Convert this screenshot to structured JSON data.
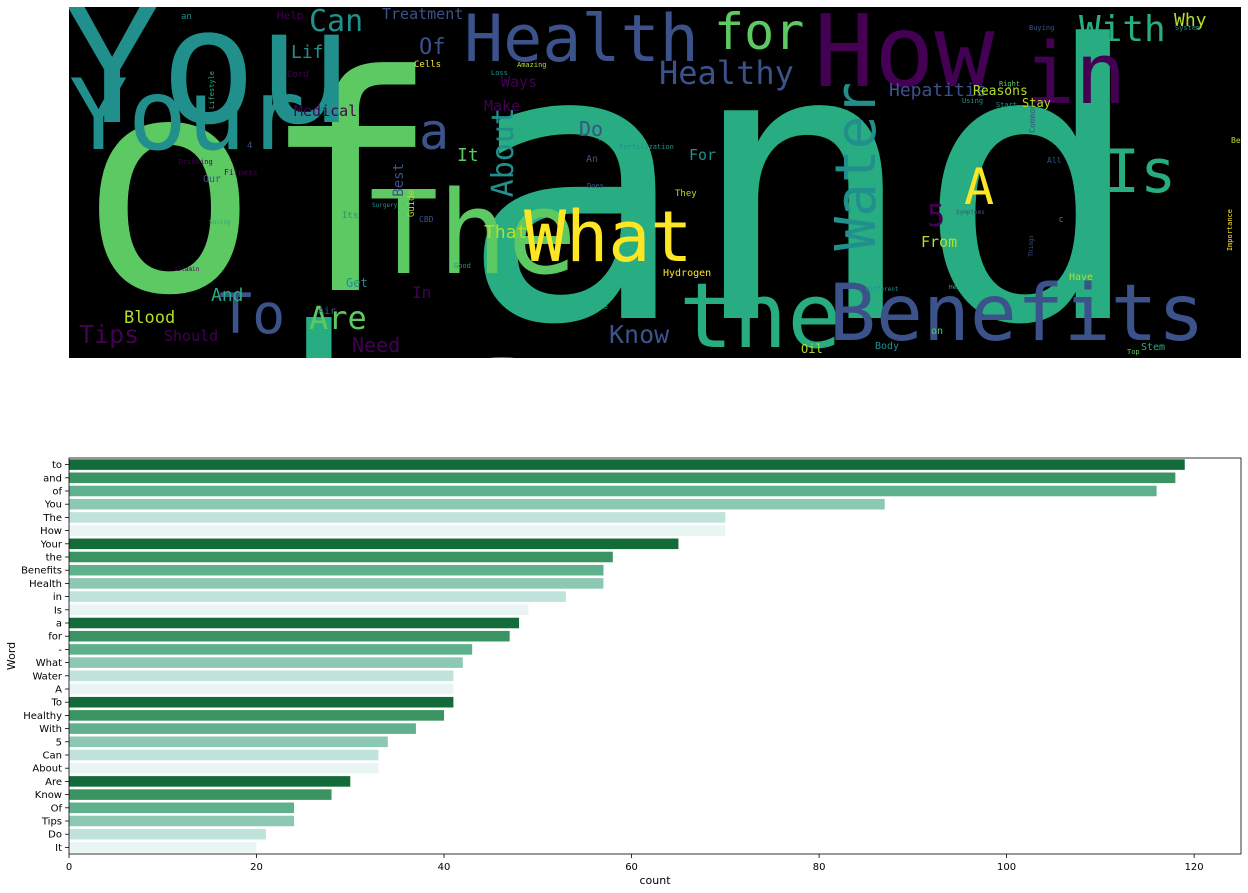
{
  "wordcloud": {
    "background": "#000000",
    "palette": [
      "#440154",
      "#3b528b",
      "#21908d",
      "#27ad81",
      "#5dc963",
      "#b5de2b",
      "#fde725"
    ],
    "words": [
      {
        "t": "to",
        "c": 3
      },
      {
        "t": "and",
        "c": 3
      },
      {
        "t": "of",
        "c": 4
      },
      {
        "t": "You",
        "c": 2
      },
      {
        "t": "The",
        "c": 4
      },
      {
        "t": "How",
        "c": 0
      },
      {
        "t": "Your",
        "c": 2
      },
      {
        "t": "the",
        "c": 3
      },
      {
        "t": "Benefits",
        "c": 1
      },
      {
        "t": "Health",
        "c": 1
      },
      {
        "t": "in",
        "c": 0
      },
      {
        "t": "Is",
        "c": 3
      },
      {
        "t": "a",
        "c": 1
      },
      {
        "t": "for",
        "c": 4
      },
      {
        "t": "What",
        "c": 6
      },
      {
        "t": "Water",
        "c": 2
      },
      {
        "t": "A",
        "c": 6
      },
      {
        "t": "To",
        "c": 1
      },
      {
        "t": "Healthy",
        "c": 1
      },
      {
        "t": "With",
        "c": 3
      },
      {
        "t": "5",
        "c": 0
      },
      {
        "t": "Can",
        "c": 2
      },
      {
        "t": "About",
        "c": 2
      },
      {
        "t": "Are",
        "c": 4
      },
      {
        "t": "Know",
        "c": 1
      },
      {
        "t": "Of",
        "c": 1
      },
      {
        "t": "Tips",
        "c": 0
      },
      {
        "t": "Do",
        "c": 1
      },
      {
        "t": "It",
        "c": 4
      },
      {
        "t": "Why",
        "c": 5
      },
      {
        "t": "Treatment",
        "c": 1
      },
      {
        "t": "Life",
        "c": 2
      },
      {
        "t": "Hepatitis",
        "c": 1
      },
      {
        "t": "That",
        "c": 5
      },
      {
        "t": "Blood",
        "c": 5
      },
      {
        "t": "And",
        "c": 3
      },
      {
        "t": "Need",
        "c": 0
      },
      {
        "t": "Should",
        "c": 0
      },
      {
        "t": "Medical",
        "c": 0
      },
      {
        "t": "For",
        "c": 2
      },
      {
        "t": "Make",
        "c": 0
      },
      {
        "t": "Ways",
        "c": 0
      },
      {
        "t": "From",
        "c": 5
      },
      {
        "t": "Reasons",
        "c": 5
      },
      {
        "t": "Stay",
        "c": 5
      },
      {
        "t": "Best",
        "c": 1
      },
      {
        "t": "Get",
        "c": 2
      },
      {
        "t": "In",
        "c": 0
      },
      {
        "t": "Hydrogen",
        "c": 6
      },
      {
        "t": "Oil",
        "c": 5
      },
      {
        "t": "Have",
        "c": 5
      },
      {
        "t": "Stem",
        "c": 3
      },
      {
        "t": "Help",
        "c": 0
      },
      {
        "t": "Cells",
        "c": 6
      },
      {
        "t": "Guide",
        "c": 5
      },
      {
        "t": "Body",
        "c": 2
      },
      {
        "t": "Our",
        "c": 1
      },
      {
        "t": "Air",
        "c": 1
      },
      {
        "t": "An",
        "c": 1
      },
      {
        "t": "They",
        "c": 5
      },
      {
        "t": "on",
        "c": 4
      },
      {
        "t": "Its",
        "c": 2
      },
      {
        "t": "Cord",
        "c": 0
      },
      {
        "t": "an",
        "c": 2
      },
      {
        "t": "4",
        "c": 1
      },
      {
        "t": "Common",
        "c": 1
      },
      {
        "t": "Things",
        "c": 1
      },
      {
        "t": "Using",
        "c": 2
      },
      {
        "t": "Be",
        "c": 5
      },
      {
        "t": "Importance",
        "c": 6
      },
      {
        "t": "All",
        "c": 1
      },
      {
        "t": "C",
        "c": 3
      },
      {
        "t": "Amazing",
        "c": 5
      },
      {
        "t": "Loss",
        "c": 2
      },
      {
        "t": "Drinking",
        "c": 0
      },
      {
        "t": "Lifestyle",
        "c": 3
      },
      {
        "t": "Fitness",
        "c": 0
      },
      {
        "t": "Good",
        "c": 2
      },
      {
        "t": "CBD",
        "c": 1
      },
      {
        "t": "Surgery",
        "c": 2
      },
      {
        "t": "Some",
        "c": 3
      },
      {
        "t": "Different",
        "c": 2
      },
      {
        "t": "Healthcare",
        "c": 3
      },
      {
        "t": "Buying",
        "c": 1
      },
      {
        "t": "System",
        "c": 2
      },
      {
        "t": "Right",
        "c": 4
      },
      {
        "t": "Start",
        "c": 2
      },
      {
        "t": "Does",
        "c": 1
      },
      {
        "t": "Top",
        "c": 4
      },
      {
        "t": "Symptoms",
        "c": 1
      },
      {
        "t": "Therapeutic",
        "c": 3
      },
      {
        "t": "Saving",
        "c": 3
      },
      {
        "t": "Vitamin",
        "c": 0
      },
      {
        "t": "Fertilization",
        "c": 2
      }
    ]
  },
  "chart_data": {
    "type": "bar",
    "orientation": "horizontal",
    "xlabel": "count",
    "ylabel": "Word",
    "xlim": [
      0,
      125
    ],
    "xticks": [
      0,
      20,
      40,
      60,
      80,
      100,
      120
    ],
    "grid": false,
    "palette": [
      "#146b3a",
      "#3a9461",
      "#5fb08c",
      "#8dc8b2",
      "#bfe3da",
      "#e8f5f2"
    ],
    "categories": [
      "to",
      "and",
      "of",
      "You",
      "The",
      "How",
      "Your",
      "the",
      "Benefits",
      "Health",
      "in",
      "Is",
      "a",
      "for",
      "-",
      "What",
      "Water",
      "A",
      "To",
      "Healthy",
      "With",
      "5",
      "Can",
      "About",
      "Are",
      "Know",
      "Of",
      "Tips",
      "Do",
      "It"
    ],
    "values": [
      119,
      118,
      116,
      87,
      70,
      70,
      65,
      58,
      57,
      57,
      53,
      49,
      48,
      47,
      43,
      42,
      41,
      41,
      41,
      40,
      37,
      34,
      33,
      33,
      30,
      28,
      24,
      24,
      21,
      20
    ]
  }
}
